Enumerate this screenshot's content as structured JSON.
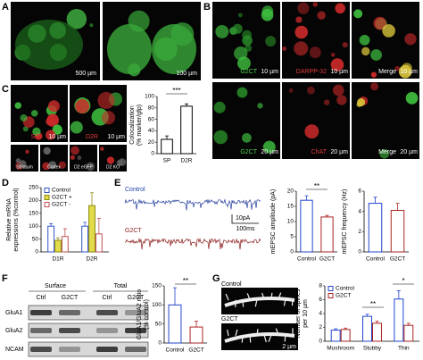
{
  "figure": {
    "panels": [
      "A",
      "B",
      "C",
      "D",
      "E",
      "F",
      "G"
    ],
    "A": {
      "scales": [
        "500 µm",
        "100 µm"
      ]
    },
    "B": {
      "images": [
        {
          "label": "G2CT",
          "scale": "10 µm"
        },
        {
          "label": "DARPP-32",
          "scale": "10 µm"
        },
        {
          "label": "Merge",
          "scale": "10 µm"
        },
        {
          "label": "G2CT",
          "scale": "20 µm"
        },
        {
          "label": "ChAT",
          "scale": "20 µm"
        },
        {
          "label": "Merge",
          "scale": "20 µm"
        }
      ]
    },
    "C": {
      "images": [
        {
          "label": "SP",
          "scale": "10 µm"
        },
        {
          "label": "D2R",
          "scale": "10 µm"
        }
      ],
      "insets": [
        "Striatum",
        "Cortex",
        "D2 eGFP",
        "D2 KO"
      ]
    },
    "E": {
      "traces": [
        "Control",
        "G2CT"
      ],
      "scale": [
        "10pA",
        "100ms"
      ]
    },
    "F": {
      "groups": [
        "Surface",
        "Total"
      ],
      "lanes": [
        "Ctrl",
        "G2CT",
        "Ctrl",
        "G2CT"
      ],
      "rows": [
        "GluA1",
        "GluA2",
        "NCAM"
      ]
    },
    "G": {
      "images": [
        "Control",
        "G2CT"
      ],
      "scale": "2 µm"
    }
  },
  "chart_data": [
    {
      "type": "bar",
      "ylabel": [
        "Colocalization",
        "(% marker/gfp)"
      ],
      "categories": [
        "SP",
        "D2R"
      ],
      "values": [
        25,
        83
      ],
      "errors": [
        6,
        4
      ],
      "colors": [
        "#000000",
        "#000000"
      ],
      "ylim": [
        0,
        100
      ],
      "yticks": [
        0,
        20,
        40,
        60,
        80,
        100
      ],
      "annotations": [
        "***"
      ]
    },
    {
      "type": "bar",
      "ylabel": [
        "Relative mRNA",
        "expressions (%control)"
      ],
      "categories": [
        "D1R",
        "D2R"
      ],
      "series": [
        {
          "name": "Control",
          "color": "#3355cc",
          "fill": "#ffffff",
          "values": [
            100,
            100
          ],
          "errors": [
            10,
            15
          ]
        },
        {
          "name": "G2CT +",
          "color": "#8a8a10",
          "fill": "#e3dc4a",
          "values": [
            45,
            180
          ],
          "errors": [
            10,
            50
          ]
        },
        {
          "name": "G2CT -",
          "color": "#c05050",
          "fill": "#ffffff",
          "values": [
            60,
            70
          ],
          "errors": [
            30,
            60
          ]
        }
      ],
      "ylim": [
        0,
        250
      ],
      "yticks": [
        0,
        50,
        100,
        150,
        200,
        250
      ],
      "legend": "upper left"
    },
    {
      "type": "bar",
      "ylabel": [
        "mEPSC amplitude (pA)"
      ],
      "categories": [
        "Control",
        "G2CT"
      ],
      "values": [
        17,
        11.5
      ],
      "errors": [
        1.5,
        0.5
      ],
      "colors": [
        "#2244cc",
        "#aa2222"
      ],
      "ylim": [
        0,
        20
      ],
      "yticks": [
        0,
        5,
        10,
        15,
        20
      ],
      "annotations": [
        "**"
      ]
    },
    {
      "type": "bar",
      "ylabel": [
        "mEPSC frequency (Hz)"
      ],
      "categories": [
        "Control",
        "G2CT"
      ],
      "values": [
        4.8,
        4.1
      ],
      "errors": [
        0.6,
        0.7
      ],
      "colors": [
        "#2244cc",
        "#aa2222"
      ],
      "ylim": [
        0,
        6
      ],
      "yticks": [
        0,
        2,
        4,
        6
      ]
    },
    {
      "type": "bar",
      "ylabel": [
        "GluA1/GluA2 ratio",
        "(% control)"
      ],
      "categories": [
        "Control",
        "G2CT"
      ],
      "values": [
        100,
        42
      ],
      "errors": [
        45,
        15
      ],
      "colors": [
        "#2244cc",
        "#aa2222"
      ],
      "ylim": [
        0,
        150
      ],
      "yticks": [
        0,
        50,
        100,
        150
      ],
      "annotations": [
        "**"
      ]
    },
    {
      "type": "bar",
      "ylabel": [
        "Number of spines",
        "per 10 µm"
      ],
      "categories": [
        "Mushroom",
        "Stubby",
        "Thin"
      ],
      "series": [
        {
          "name": "Control",
          "color": "#2244cc",
          "fill": "#ffffff",
          "values": [
            1.6,
            3.6,
            6.1
          ],
          "errors": [
            0.2,
            0.3,
            1.2
          ]
        },
        {
          "name": "G2CT",
          "color": "#aa2222",
          "fill": "#ffffff",
          "values": [
            1.7,
            2.6,
            2.3
          ],
          "errors": [
            0.2,
            0.3,
            0.3
          ]
        }
      ],
      "ylim": [
        0,
        8
      ],
      "yticks": [
        0,
        2,
        4,
        6,
        8
      ],
      "annotations": [
        "**",
        "*"
      ],
      "legend": "upper left"
    }
  ]
}
